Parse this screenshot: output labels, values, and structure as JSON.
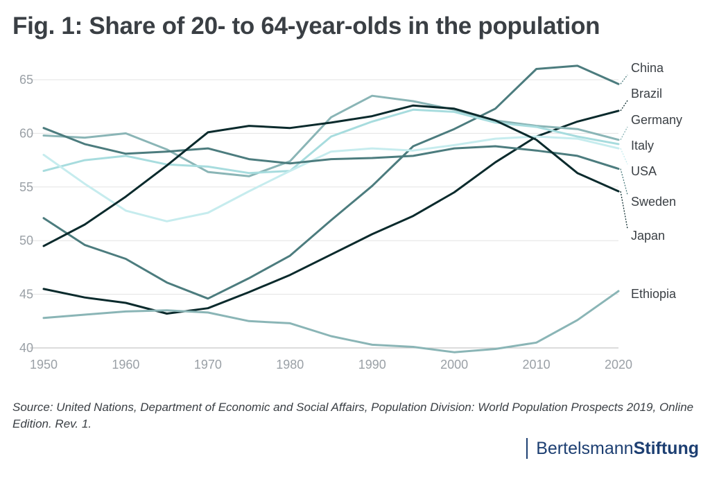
{
  "title": "Fig. 1:  Share of 20- to 64-year-olds in the population",
  "source": "Source: United Nations, Department of Economic and Social Affairs, Population Division: World Population Prospects 2019, Online Edition. Rev. 1.",
  "logo": {
    "light": "Bertelsmann",
    "bold": "Stiftung",
    "color": "#1d3f72"
  },
  "chart_data": {
    "type": "line",
    "x": [
      1950,
      1955,
      1960,
      1965,
      1970,
      1975,
      1980,
      1985,
      1990,
      1995,
      2000,
      2005,
      2010,
      2015,
      2020
    ],
    "xlim": [
      1950,
      2020
    ],
    "ylim": [
      40,
      65
    ],
    "xticks": [
      1950,
      1960,
      1970,
      1980,
      1990,
      2000,
      2010,
      2020
    ],
    "yticks": [
      40,
      45,
      50,
      55,
      60,
      65
    ],
    "grid": "horizontal",
    "legend": "direct labels at right",
    "series": [
      {
        "name": "China",
        "color": "#4c7c7e",
        "values": [
          52.1,
          49.6,
          48.3,
          46.1,
          44.6,
          46.5,
          48.6,
          51.9,
          55.1,
          58.8,
          60.4,
          62.3,
          66.0,
          66.3,
          64.6
        ]
      },
      {
        "name": "Brazil",
        "color": "#0a2a2c",
        "values": [
          45.5,
          44.7,
          44.2,
          43.2,
          43.7,
          45.2,
          46.8,
          48.7,
          50.6,
          52.3,
          54.5,
          57.3,
          59.7,
          61.1,
          62.1
        ]
      },
      {
        "name": "Germany",
        "color": "#8ab5b6",
        "values": [
          59.8,
          59.6,
          60.0,
          58.5,
          56.4,
          56.0,
          57.4,
          61.5,
          63.5,
          63.0,
          62.2,
          61.2,
          60.7,
          60.4,
          59.4
        ]
      },
      {
        "name": "Italy",
        "color": "#a7dcde",
        "values": [
          56.5,
          57.5,
          57.9,
          57.1,
          56.9,
          56.3,
          56.5,
          59.7,
          61.1,
          62.2,
          62.0,
          61.0,
          60.6,
          59.7,
          59.0
        ]
      },
      {
        "name": "USA",
        "color": "#c6ecee",
        "values": [
          58.0,
          55.3,
          52.8,
          51.8,
          52.6,
          54.6,
          56.5,
          58.3,
          58.6,
          58.4,
          58.9,
          59.5,
          59.7,
          59.5,
          58.6
        ]
      },
      {
        "name": "Sweden",
        "color": "#4c7c7e",
        "values": [
          60.5,
          59.0,
          58.1,
          58.3,
          58.6,
          57.6,
          57.2,
          57.6,
          57.7,
          57.9,
          58.6,
          58.8,
          58.4,
          57.9,
          56.7
        ]
      },
      {
        "name": "Japan",
        "color": "#0a2a2c",
        "values": [
          49.5,
          51.5,
          54.1,
          57.0,
          60.1,
          60.7,
          60.5,
          61.0,
          61.6,
          62.6,
          62.3,
          61.2,
          59.4,
          56.3,
          54.6
        ]
      },
      {
        "name": "Ethiopia",
        "color": "#8ab5b6",
        "values": [
          42.8,
          43.1,
          43.4,
          43.5,
          43.3,
          42.5,
          42.3,
          41.1,
          40.3,
          40.1,
          39.6,
          39.9,
          40.5,
          42.6,
          45.3
        ]
      }
    ]
  }
}
